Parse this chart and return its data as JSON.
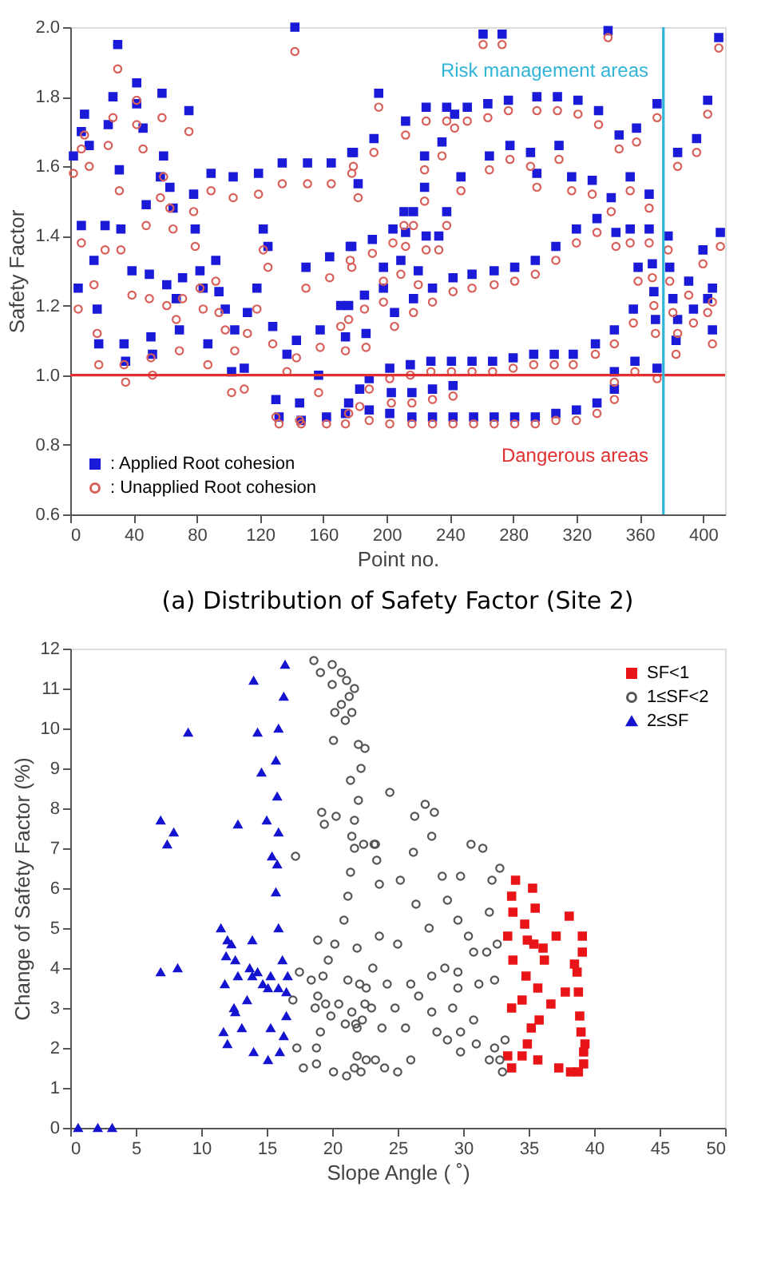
{
  "chart_data": [
    {
      "type": "scatter",
      "title": "(a) Distribution of Safety Factor (Site 2)",
      "xlabel": "Point no.",
      "ylabel": "Safety Factor",
      "legend": "bottom left",
      "grid": false,
      "xlim": [
        0,
        414
      ],
      "ylim": [
        0.6,
        2.0
      ],
      "xticks": [
        0,
        40,
        80,
        120,
        160,
        200,
        240,
        280,
        320,
        360,
        400
      ],
      "yticks": [
        {
          "value": 0.6,
          "label": "0.6"
        },
        {
          "value": 0.8,
          "label": "0.8"
        },
        {
          "value": 1.0,
          "label": "1.0"
        },
        {
          "value": 1.2,
          "label": "1.2"
        },
        {
          "value": 1.4,
          "label": "1.4"
        },
        {
          "value": 1.6,
          "label": "1.6"
        },
        {
          "value": 1.8,
          "label": "1.8"
        },
        {
          "value": 2.0,
          "label": "2.0"
        }
      ],
      "ref_lines": [
        {
          "axis": "y",
          "value": 1.0,
          "color": "#e03030",
          "line_style": "solid"
        },
        {
          "axis": "x",
          "value": 375,
          "color": "#30b4d8",
          "line_style": "solid"
        }
      ],
      "annotations": [
        "Risk management areas",
        "Dangerous areas"
      ],
      "x": [
        2,
        7,
        9,
        12,
        7,
        5,
        15,
        17,
        18,
        22,
        24,
        27,
        30,
        31,
        32,
        34,
        35,
        39,
        42,
        42,
        46,
        48,
        50,
        51,
        52,
        57,
        58,
        59,
        61,
        63,
        65,
        67,
        69,
        71,
        75,
        78,
        79,
        82,
        84,
        87,
        89,
        92,
        94,
        98,
        103,
        102,
        104,
        110,
        112,
        118,
        119,
        122,
        125,
        128,
        130,
        132,
        134,
        137,
        142,
        143,
        145,
        146,
        150,
        149,
        157,
        158,
        162,
        165,
        164,
        171,
        174,
        178,
        178,
        183,
        261,
        273,
        340,
        410,
        195,
        212,
        225,
        238,
        243,
        251,
        264,
        277,
        295,
        308,
        321,
        334,
        347,
        358,
        371,
        384,
        403,
        396,
        179,
        182,
        192,
        211,
        224,
        224,
        235,
        247,
        265,
        278,
        291,
        295,
        309,
        317,
        330,
        342,
        354,
        366,
        177,
        191,
        204,
        212,
        217,
        225,
        233,
        238,
        198,
        209,
        220,
        229,
        242,
        254,
        268,
        281,
        294,
        307,
        320,
        333,
        345,
        354,
        366,
        378,
        411,
        176,
        186,
        198,
        205,
        217,
        359,
        368,
        379,
        381,
        369,
        370,
        356,
        383,
        384,
        394,
        391,
        400,
        403,
        406,
        406,
        174,
        187,
        202,
        215,
        228,
        241,
        254,
        267,
        280,
        293,
        306,
        318,
        332,
        344,
        357,
        371,
        344,
        176,
        189,
        203,
        216,
        229,
        242,
        344,
        189,
        202,
        216,
        229,
        242,
        255,
        268,
        281,
        294,
        307,
        320,
        333
      ],
      "series": [
        {
          "name": ": Applied Root cohesion",
          "color": "#1a1ad8",
          "marker": "square",
          "values": [
            1.63,
            1.7,
            1.75,
            1.66,
            1.43,
            1.25,
            1.33,
            1.19,
            1.09,
            1.43,
            1.72,
            1.8,
            1.95,
            1.59,
            1.42,
            1.09,
            1.04,
            1.3,
            1.78,
            1.84,
            1.71,
            1.49,
            1.29,
            1.11,
            1.06,
            1.57,
            1.81,
            1.63,
            1.26,
            1.54,
            1.48,
            1.22,
            1.13,
            1.28,
            1.76,
            1.52,
            1.42,
            1.3,
            1.25,
            1.09,
            1.58,
            1.33,
            1.24,
            1.19,
            1.57,
            1.01,
            1.13,
            1.02,
            1.18,
            1.25,
            1.58,
            1.42,
            1.37,
            1.14,
            0.93,
            0.88,
            1.61,
            1.06,
            2.0,
            1.1,
            0.92,
            0.87,
            1.61,
            1.31,
            1.0,
            1.13,
            0.88,
            1.61,
            1.34,
            1.2,
            0.89,
            1.64,
            1.37,
            0.96,
            1.98,
            1.98,
            1.99,
            1.97,
            1.81,
            1.73,
            1.77,
            1.77,
            1.75,
            1.77,
            1.78,
            1.79,
            1.8,
            1.8,
            1.79,
            1.76,
            1.69,
            1.71,
            1.78,
            1.64,
            1.79,
            1.68,
            1.64,
            1.55,
            1.68,
            1.47,
            1.63,
            1.54,
            1.67,
            1.57,
            1.63,
            1.66,
            1.64,
            1.58,
            1.66,
            1.57,
            1.56,
            1.51,
            1.57,
            1.52,
            1.37,
            1.39,
            1.42,
            1.41,
            1.47,
            1.4,
            1.4,
            1.47,
            1.31,
            1.33,
            1.3,
            1.25,
            1.28,
            1.29,
            1.3,
            1.31,
            1.33,
            1.37,
            1.42,
            1.45,
            1.41,
            1.42,
            1.42,
            1.4,
            1.41,
            1.2,
            1.23,
            1.25,
            1.18,
            1.22,
            1.31,
            1.32,
            1.31,
            1.22,
            1.24,
            1.16,
            1.19,
            1.1,
            1.16,
            1.19,
            1.27,
            1.36,
            1.22,
            1.25,
            1.13,
            1.11,
            1.12,
            1.02,
            1.03,
            1.04,
            1.04,
            1.04,
            1.04,
            1.05,
            1.06,
            1.06,
            1.06,
            1.09,
            1.13,
            1.04,
            1.02,
            1.01,
            0.92,
            0.99,
            0.95,
            0.95,
            0.96,
            0.97,
            0.96,
            0.9,
            0.89,
            0.88,
            0.88,
            0.88,
            0.88,
            0.88,
            0.88,
            0.88,
            0.89,
            0.9,
            0.92
          ]
        },
        {
          "name": ": Unapplied Root cohesion",
          "color": "#d9605a",
          "marker": "circle",
          "values": [
            1.58,
            1.65,
            1.69,
            1.6,
            1.38,
            1.19,
            1.26,
            1.12,
            1.03,
            1.36,
            1.66,
            1.74,
            1.88,
            1.53,
            1.36,
            1.03,
            0.98,
            1.23,
            1.72,
            1.79,
            1.65,
            1.43,
            1.22,
            1.05,
            1.0,
            1.51,
            1.74,
            1.57,
            1.2,
            1.48,
            1.42,
            1.16,
            1.07,
            1.22,
            1.7,
            1.47,
            1.37,
            1.25,
            1.19,
            1.03,
            1.53,
            1.27,
            1.18,
            1.13,
            1.51,
            0.95,
            1.07,
            0.96,
            1.12,
            1.19,
            1.52,
            1.36,
            1.31,
            1.09,
            0.88,
            0.86,
            1.55,
            1.01,
            1.93,
            1.05,
            0.87,
            0.86,
            1.55,
            1.25,
            0.95,
            1.08,
            0.86,
            1.55,
            1.28,
            1.14,
            0.86,
            1.58,
            1.31,
            0.91,
            1.95,
            1.95,
            1.97,
            1.94,
            1.77,
            1.69,
            1.73,
            1.73,
            1.71,
            1.73,
            1.74,
            1.76,
            1.76,
            1.76,
            1.75,
            1.72,
            1.65,
            1.67,
            1.74,
            1.6,
            1.75,
            1.64,
            1.6,
            1.51,
            1.64,
            1.43,
            1.59,
            1.5,
            1.63,
            1.53,
            1.59,
            1.62,
            1.6,
            1.54,
            1.62,
            1.53,
            1.52,
            1.47,
            1.53,
            1.48,
            1.33,
            1.35,
            1.38,
            1.37,
            1.43,
            1.36,
            1.36,
            1.43,
            1.27,
            1.29,
            1.26,
            1.21,
            1.24,
            1.25,
            1.26,
            1.27,
            1.29,
            1.33,
            1.38,
            1.41,
            1.37,
            1.38,
            1.38,
            1.36,
            1.37,
            1.16,
            1.19,
            1.21,
            1.14,
            1.18,
            1.27,
            1.28,
            1.27,
            1.18,
            1.2,
            1.12,
            1.15,
            1.06,
            1.12,
            1.15,
            1.23,
            1.32,
            1.18,
            1.21,
            1.09,
            1.07,
            1.08,
            0.99,
            1.0,
            1.01,
            1.01,
            1.01,
            1.01,
            1.02,
            1.03,
            1.03,
            1.03,
            1.06,
            1.09,
            1.01,
            0.99,
            0.98,
            0.89,
            0.96,
            0.92,
            0.92,
            0.93,
            0.94,
            0.93,
            0.87,
            0.86,
            0.86,
            0.86,
            0.86,
            0.86,
            0.86,
            0.86,
            0.86,
            0.87,
            0.87,
            0.89
          ]
        }
      ]
    },
    {
      "type": "scatter",
      "xlabel": "Slope Angle ( ˚)",
      "ylabel": "Change of Safety Factor (%)",
      "legend": "top right",
      "grid": false,
      "xlim": [
        0,
        50
      ],
      "ylim": [
        0,
        12
      ],
      "xticks": [
        0,
        5,
        10,
        15,
        20,
        25,
        30,
        35,
        40,
        45,
        50
      ],
      "yticks": [
        0,
        1,
        2,
        3,
        4,
        5,
        6,
        7,
        8,
        9,
        10,
        11,
        12
      ],
      "series": [
        {
          "name": "SF<1",
          "color": "#e81418",
          "marker": "square",
          "x": [
            34.0,
            35.3,
            33.7,
            35.5,
            33.8,
            34.7,
            38.1,
            33.4,
            34.9,
            35.4,
            36.1,
            37.1,
            39.1,
            39.1,
            33.8,
            36.2,
            38.5,
            38.7,
            34.8,
            35.7,
            38.8,
            37.8,
            34.5,
            36.7,
            33.7,
            35.8,
            38.9,
            35.2,
            39.0,
            34.9,
            39.3,
            33.4,
            34.5,
            39.2,
            33.7,
            35.7,
            37.3,
            38.2,
            38.8,
            39.2
          ],
          "values": [
            6.2,
            6.0,
            5.8,
            5.5,
            5.4,
            5.1,
            5.3,
            4.8,
            4.7,
            4.6,
            4.5,
            4.8,
            4.8,
            4.4,
            4.2,
            4.2,
            4.1,
            3.9,
            3.8,
            3.5,
            3.4,
            3.4,
            3.2,
            3.1,
            3.0,
            2.7,
            2.8,
            2.5,
            2.4,
            2.1,
            2.1,
            1.8,
            1.8,
            1.9,
            1.5,
            1.7,
            1.5,
            1.4,
            1.4,
            1.6
          ]
        },
        {
          "name": "1≤SF<2",
          "color": "#555555",
          "marker": "circle",
          "x": [
            18.6,
            19.1,
            20.0,
            20.7,
            20.0,
            21.1,
            21.7,
            21.3,
            20.7,
            21.5,
            20.2,
            21.0,
            20.1,
            22.0,
            22.5,
            22.2,
            21.4,
            22.0,
            19.2,
            19.4,
            20.3,
            21.7,
            21.5,
            21.7,
            23.3,
            23.4,
            17.2,
            21.4,
            21.2,
            20.9,
            18.9,
            20.2,
            21.9,
            19.7,
            17.5,
            18.4,
            19.3,
            21.2,
            22.1,
            23.1,
            18.9,
            19.5,
            20.5,
            21.5,
            22.5,
            17.0,
            18.7,
            19.9,
            21.0,
            21.9,
            22.3,
            19.1,
            17.3,
            18.8,
            17.8,
            18.8,
            20.1,
            21.1,
            21.7,
            21.9,
            23.3,
            24.4,
            26.3,
            27.1,
            27.8,
            27.6,
            26.2,
            23.2,
            30.6,
            31.5,
            32.8,
            32.2,
            29.8,
            28.4,
            25.2,
            23.6,
            22.4,
            26.4,
            28.8,
            29.6,
            30.4,
            27.4,
            25.0,
            23.6,
            32.0,
            30.8,
            31.8,
            32.6,
            28.6,
            29.6,
            27.6,
            26.0,
            24.2,
            22.6,
            29.6,
            31.2,
            32.4,
            26.6,
            24.8,
            23.0,
            27.6,
            29.2,
            30.8,
            25.6,
            23.8,
            21.8,
            28.0,
            29.8,
            28.8,
            31.0,
            32.4,
            33.2,
            32.8,
            33.0,
            32.0,
            29.8,
            26.0,
            25.0,
            24.0,
            22.6,
            22.2
          ],
          "values": [
            11.7,
            11.4,
            11.6,
            11.4,
            11.1,
            11.2,
            11.0,
            10.8,
            10.6,
            10.4,
            10.4,
            10.2,
            9.7,
            9.6,
            9.5,
            9.0,
            8.7,
            8.2,
            7.9,
            7.6,
            7.8,
            7.7,
            7.3,
            7.0,
            7.1,
            6.7,
            6.8,
            6.4,
            5.8,
            5.2,
            4.7,
            4.6,
            4.5,
            4.2,
            3.9,
            3.7,
            3.8,
            3.7,
            3.6,
            4.0,
            3.3,
            3.1,
            3.1,
            2.9,
            3.1,
            3.2,
            3.0,
            2.8,
            2.6,
            2.5,
            2.7,
            2.4,
            2.0,
            2.0,
            1.5,
            1.6,
            1.4,
            1.3,
            1.5,
            1.8,
            1.7,
            8.4,
            7.8,
            8.1,
            7.9,
            7.3,
            6.9,
            7.1,
            7.1,
            7.0,
            6.5,
            6.2,
            6.3,
            6.3,
            6.2,
            6.1,
            7.1,
            5.6,
            5.7,
            5.2,
            4.8,
            5.0,
            4.6,
            4.8,
            5.4,
            4.4,
            4.4,
            4.6,
            4.0,
            3.9,
            3.8,
            3.6,
            3.6,
            3.5,
            3.5,
            3.6,
            3.7,
            3.3,
            3.0,
            3.0,
            2.9,
            3.0,
            2.7,
            2.5,
            2.5,
            2.6,
            2.4,
            2.4,
            2.2,
            2.1,
            2.0,
            2.2,
            1.7,
            1.4,
            1.7,
            1.9,
            1.7,
            1.4,
            1.5,
            1.7,
            1.4
          ]
        },
        {
          "name": "2≤SF",
          "color": "#1414d0",
          "marker": "triangle",
          "x": [
            0.6,
            2.1,
            3.2,
            6.9,
            7.9,
            7.4,
            9.0,
            6.9,
            8.2,
            14.0,
            16.4,
            16.3,
            14.3,
            15.9,
            14.6,
            15.7,
            15.8,
            12.8,
            15.0,
            15.9,
            15.4,
            15.8,
            15.7,
            15.9,
            16.2,
            13.9,
            11.5,
            12.0,
            12.3,
            11.9,
            12.6,
            13.7,
            13.9,
            14.7,
            15.3,
            15.9,
            16.5,
            11.8,
            12.8,
            14.3,
            15.1,
            13.5,
            12.5,
            12.6,
            16.5,
            13.1,
            15.3,
            11.7,
            12.0,
            16.3,
            14.0,
            15.1,
            16.0,
            16.6
          ],
          "values": [
            0,
            0,
            0,
            7.7,
            7.4,
            7.1,
            9.9,
            3.9,
            4.0,
            11.2,
            11.6,
            10.8,
            9.9,
            10.0,
            8.9,
            9.2,
            8.3,
            7.6,
            7.7,
            7.4,
            6.8,
            6.6,
            5.9,
            5.0,
            4.2,
            4.7,
            5.0,
            4.7,
            4.6,
            4.3,
            4.2,
            4.0,
            3.8,
            3.6,
            3.8,
            3.5,
            3.4,
            3.6,
            3.8,
            3.9,
            3.5,
            3.2,
            3.0,
            2.9,
            2.8,
            2.5,
            2.5,
            2.4,
            2.1,
            2.3,
            1.9,
            1.7,
            1.9,
            3.8
          ]
        }
      ]
    }
  ]
}
